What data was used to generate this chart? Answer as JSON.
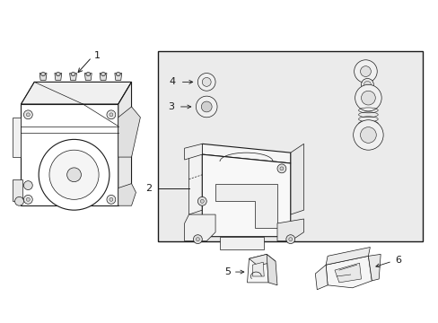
{
  "bg_color": "#ffffff",
  "line_color": "#1a1a1a",
  "fig_width": 4.89,
  "fig_height": 3.6,
  "dpi": 100,
  "box_bg": "#e8e8e8",
  "part_fill": "#ffffff",
  "part_shade": "#e0e0e0"
}
